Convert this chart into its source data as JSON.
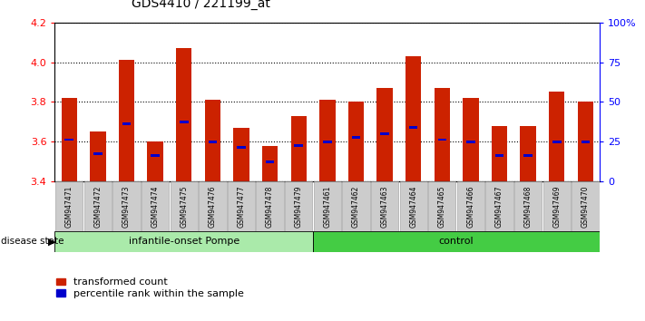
{
  "title": "GDS4410 / 221199_at",
  "samples": [
    "GSM947471",
    "GSM947472",
    "GSM947473",
    "GSM947474",
    "GSM947475",
    "GSM947476",
    "GSM947477",
    "GSM947478",
    "GSM947479",
    "GSM947461",
    "GSM947462",
    "GSM947463",
    "GSM947464",
    "GSM947465",
    "GSM947466",
    "GSM947467",
    "GSM947468",
    "GSM947469",
    "GSM947470"
  ],
  "bar_values": [
    3.82,
    3.65,
    4.01,
    3.6,
    4.07,
    3.81,
    3.67,
    3.58,
    3.73,
    3.81,
    3.8,
    3.87,
    4.03,
    3.87,
    3.82,
    3.68,
    3.68,
    3.85,
    3.8
  ],
  "dot_values": [
    3.61,
    3.54,
    3.69,
    3.53,
    3.7,
    3.6,
    3.57,
    3.5,
    3.58,
    3.6,
    3.62,
    3.64,
    3.67,
    3.61,
    3.6,
    3.53,
    3.53,
    3.6,
    3.6
  ],
  "groups": [
    {
      "label": "infantile-onset Pompe",
      "start": 0,
      "end": 9,
      "color": "#aaeaaa"
    },
    {
      "label": "control",
      "start": 9,
      "end": 19,
      "color": "#44cc44"
    }
  ],
  "ylim": [
    3.4,
    4.2
  ],
  "yticks": [
    3.4,
    3.6,
    3.8,
    4.0,
    4.2
  ],
  "y2ticks_labels": [
    "0",
    "25",
    "50",
    "75",
    "100%"
  ],
  "bar_color": "#CC2200",
  "dot_color": "#0000CC",
  "bar_base": 3.4,
  "background_color": "#ffffff",
  "grid_color": "#000000",
  "disease_state_label": "disease state",
  "legend_transformed": "transformed count",
  "legend_percentile": "percentile rank within the sample",
  "xtick_bg": "#cccccc"
}
